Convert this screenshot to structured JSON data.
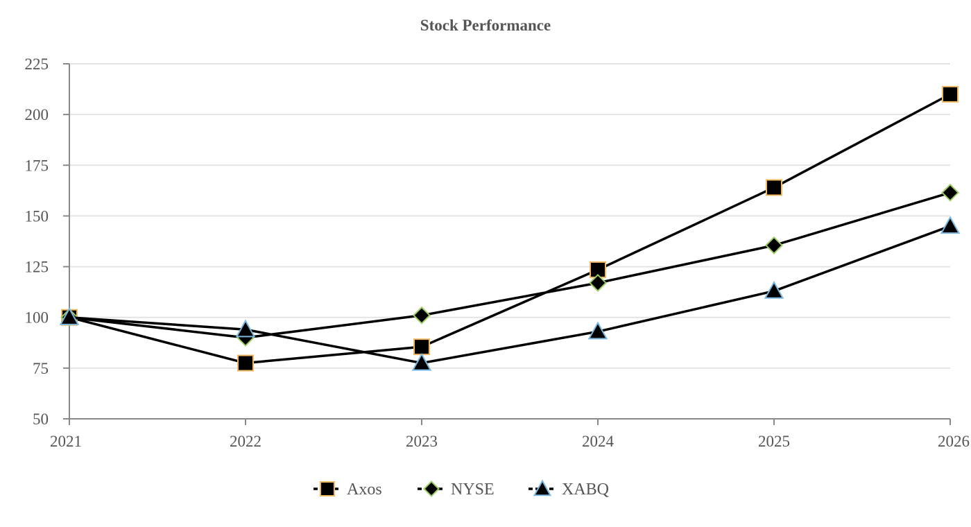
{
  "chart_data": {
    "type": "line",
    "title": "Stock Performance",
    "xlabel": "",
    "ylabel": "",
    "x": [
      "2021",
      "2022",
      "2023",
      "2024",
      "2025",
      "2026"
    ],
    "ylim": [
      50,
      225
    ],
    "yticks": [
      50,
      75,
      100,
      125,
      150,
      175,
      200,
      225
    ],
    "grid": "horizontal",
    "legend_position": "bottom",
    "series": [
      {
        "name": "Axos",
        "values": [
          100,
          77.5,
          85.5,
          123.5,
          164,
          210
        ],
        "marker": "square",
        "line_color": "#000000",
        "marker_fill": "#000000",
        "marker_edge": "#f0b860"
      },
      {
        "name": "NYSE",
        "values": [
          100,
          90,
          101,
          117,
          135.5,
          161.5
        ],
        "marker": "diamond",
        "line_color": "#000000",
        "marker_fill": "#000000",
        "marker_edge": "#9ccc65"
      },
      {
        "name": "XABQ",
        "values": [
          100,
          94,
          77.5,
          93,
          113,
          145
        ],
        "marker": "triangle",
        "line_color": "#000000",
        "marker_fill": "#000000",
        "marker_edge": "#7ab8e0"
      }
    ],
    "colors": {
      "grid": "#e4e4e4",
      "axis": "#888888",
      "text": "#555555"
    }
  }
}
